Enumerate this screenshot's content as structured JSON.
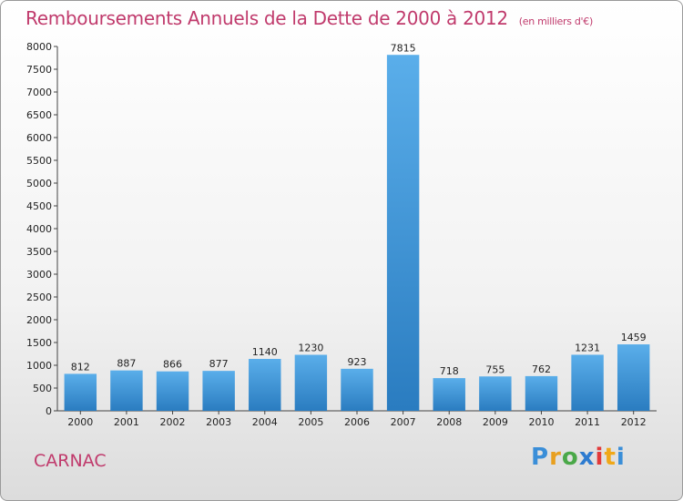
{
  "title": "Remboursements Annuels de la Dette de 2000 à 2012",
  "subtitle": "(en milliers d'€)",
  "town": "CARNAC",
  "logo": {
    "letters": [
      "P",
      "r",
      "o",
      "x",
      "i",
      "t",
      "i"
    ],
    "colors": [
      "#3a8ed8",
      "#e8a020",
      "#4aa848",
      "#2d7bd0",
      "#e23a3a",
      "#f0a818",
      "#3a8ed8"
    ]
  },
  "colors": {
    "bar": "#3e96da",
    "title": "#c03a6c"
  },
  "chart_data": {
    "type": "bar",
    "title": "Remboursements Annuels de la Dette de 2000 à 2012",
    "subtitle": "(en milliers d'€)",
    "categories": [
      "2000",
      "2001",
      "2002",
      "2003",
      "2004",
      "2005",
      "2006",
      "2007",
      "2008",
      "2009",
      "2010",
      "2011",
      "2012"
    ],
    "values": [
      812,
      887,
      866,
      877,
      1140,
      1230,
      923,
      7815,
      718,
      755,
      762,
      1231,
      1459
    ],
    "ylim": [
      0,
      8000
    ],
    "yticks": [
      0,
      500,
      1000,
      1500,
      2000,
      2500,
      3000,
      3500,
      4000,
      4500,
      5000,
      5500,
      6000,
      6500,
      7000,
      7500,
      8000
    ],
    "grid": false,
    "data_labels": true
  }
}
